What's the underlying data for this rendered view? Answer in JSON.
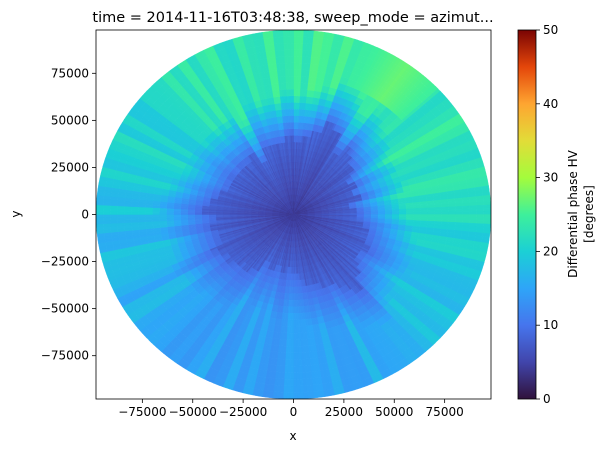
{
  "chart_data": {
    "type": "heatmap",
    "subtype": "radar-ppi",
    "title": "time = 2014-11-16T03:48:38, sweep_mode = azimut...",
    "xlabel": "x",
    "ylabel": "y",
    "xlim": [
      -98000,
      98000
    ],
    "ylim": [
      -98000,
      98000
    ],
    "x_ticks": [
      -75000,
      -50000,
      -25000,
      0,
      25000,
      50000,
      75000
    ],
    "x_tick_labels": [
      "−75000",
      "−50000",
      "−25000",
      "0",
      "25000",
      "50000",
      "75000"
    ],
    "y_ticks": [
      -75000,
      -50000,
      -25000,
      0,
      25000,
      50000,
      75000
    ],
    "y_tick_labels": [
      "−75000",
      "−50000",
      "−25000",
      "0",
      "25000",
      "50000",
      "75000"
    ],
    "max_range": 98000,
    "colorbar": {
      "label_line1": "Differential phase HV",
      "label_line2": "[degrees]",
      "vmin": 0,
      "vmax": 50,
      "ticks": [
        0,
        10,
        20,
        30,
        40,
        50
      ],
      "tick_labels": [
        "0",
        "10",
        "20",
        "30",
        "40",
        "50"
      ],
      "colormap": "turbo"
    },
    "field_description": {
      "near_center_value": 3,
      "dark_core_radius_approx": 45000,
      "outer_value_range": [
        15,
        24
      ],
      "high_region": {
        "azimuth_deg": 35,
        "value": 27
      }
    },
    "grid": false
  }
}
